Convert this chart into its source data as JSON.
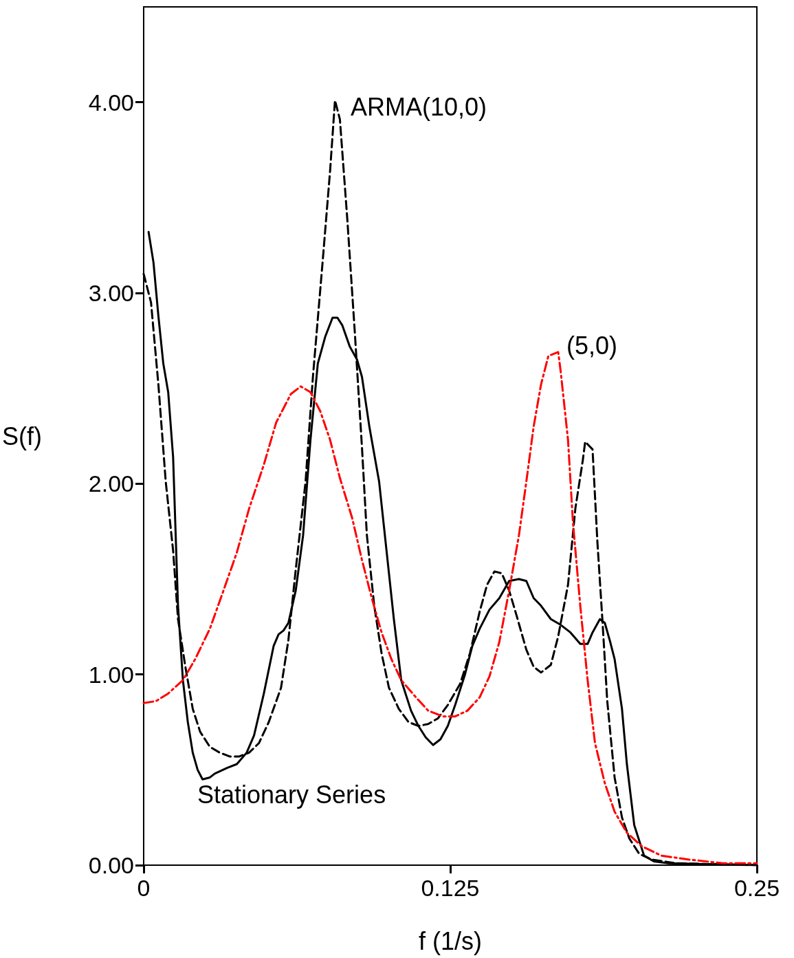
{
  "chart_data": {
    "type": "line",
    "xlabel": "f (1/s)",
    "ylabel": "S(f)",
    "xlim": [
      0,
      0.25
    ],
    "xticks": [
      0,
      0.125,
      0.25
    ],
    "ylim": [
      0,
      4.5
    ],
    "yticks": [
      {
        "value": 0,
        "label": "0.00"
      },
      {
        "value": 1,
        "label": "1.00"
      },
      {
        "value": 2,
        "label": "2.00"
      },
      {
        "value": 3,
        "label": "3.00"
      },
      {
        "value": 4,
        "label": "4.00"
      }
    ],
    "grid": false,
    "marker": "none",
    "annotations": [
      "ARMA(10,0)",
      "(5,0)",
      "Stationary Series"
    ],
    "series": [
      {
        "color": "#000000",
        "line_style": "solid",
        "x": [
          0.002,
          0.004,
          0.006,
          0.008,
          0.01,
          0.012,
          0.014,
          0.016,
          0.018,
          0.02,
          0.022,
          0.024,
          0.027,
          0.029,
          0.034,
          0.038,
          0.042,
          0.045,
          0.049,
          0.053,
          0.055,
          0.057,
          0.059,
          0.062,
          0.065,
          0.068,
          0.071,
          0.074,
          0.077,
          0.079,
          0.081,
          0.084,
          0.087,
          0.089,
          0.092,
          0.096,
          0.099,
          0.102,
          0.105,
          0.109,
          0.112,
          0.115,
          0.118,
          0.121,
          0.124,
          0.127,
          0.131,
          0.134,
          0.137,
          0.141,
          0.145,
          0.149,
          0.153,
          0.156,
          0.159,
          0.162,
          0.166,
          0.17,
          0.174,
          0.178,
          0.181,
          0.183,
          0.186,
          0.188,
          0.19,
          0.192,
          0.195,
          0.197,
          0.2,
          0.204,
          0.208,
          0.214,
          0.25
        ],
        "values": [
          3.32,
          3.16,
          2.88,
          2.63,
          2.48,
          2.14,
          1.36,
          0.97,
          0.75,
          0.59,
          0.5,
          0.45,
          0.46,
          0.48,
          0.51,
          0.53,
          0.59,
          0.68,
          0.9,
          1.15,
          1.21,
          1.23,
          1.27,
          1.44,
          1.73,
          2.23,
          2.63,
          2.77,
          2.87,
          2.87,
          2.83,
          2.72,
          2.65,
          2.56,
          2.3,
          2.01,
          1.65,
          1.29,
          0.97,
          0.81,
          0.73,
          0.67,
          0.63,
          0.66,
          0.73,
          0.84,
          1.0,
          1.15,
          1.24,
          1.34,
          1.4,
          1.49,
          1.5,
          1.49,
          1.4,
          1.36,
          1.29,
          1.26,
          1.22,
          1.16,
          1.16,
          1.22,
          1.29,
          1.27,
          1.18,
          1.08,
          0.82,
          0.53,
          0.21,
          0.05,
          0.02,
          0.01,
          0
        ]
      },
      {
        "color": "#000000",
        "line_style": "dashed",
        "x": [
          0,
          0.003,
          0.006,
          0.009,
          0.012,
          0.014,
          0.017,
          0.02,
          0.023,
          0.027,
          0.031,
          0.035,
          0.039,
          0.043,
          0.047,
          0.051,
          0.056,
          0.059,
          0.062,
          0.066,
          0.069,
          0.073,
          0.076,
          0.078,
          0.08,
          0.083,
          0.086,
          0.089,
          0.091,
          0.094,
          0.097,
          0.1,
          0.104,
          0.108,
          0.112,
          0.116,
          0.12,
          0.124,
          0.129,
          0.133,
          0.137,
          0.14,
          0.143,
          0.146,
          0.149,
          0.152,
          0.156,
          0.159,
          0.162,
          0.166,
          0.169,
          0.173,
          0.176,
          0.179,
          0.18,
          0.183,
          0.185,
          0.187,
          0.189,
          0.192,
          0.195,
          0.198,
          0.202,
          0.207,
          0.217,
          0.25
        ],
        "values": [
          3.1,
          2.95,
          2.52,
          2.01,
          1.65,
          1.29,
          1.04,
          0.82,
          0.7,
          0.62,
          0.59,
          0.57,
          0.57,
          0.59,
          0.64,
          0.75,
          0.93,
          1.18,
          1.55,
          2.01,
          2.56,
          3.17,
          3.64,
          4.01,
          3.91,
          3.39,
          2.81,
          2.19,
          1.73,
          1.36,
          1.11,
          0.93,
          0.82,
          0.75,
          0.73,
          0.74,
          0.77,
          0.84,
          0.95,
          1.11,
          1.33,
          1.47,
          1.54,
          1.53,
          1.44,
          1.31,
          1.13,
          1.04,
          1.01,
          1.05,
          1.2,
          1.47,
          1.87,
          2.12,
          2.22,
          2.18,
          1.69,
          1.29,
          0.86,
          0.46,
          0.25,
          0.14,
          0.06,
          0.03,
          0.01,
          0
        ]
      },
      {
        "color": "#ff0000",
        "line_style": "dashdot",
        "x": [
          0,
          0.005,
          0.01,
          0.016,
          0.021,
          0.027,
          0.032,
          0.038,
          0.043,
          0.049,
          0.054,
          0.06,
          0.064,
          0.068,
          0.072,
          0.076,
          0.08,
          0.085,
          0.089,
          0.093,
          0.097,
          0.101,
          0.105,
          0.111,
          0.116,
          0.122,
          0.127,
          0.132,
          0.137,
          0.141,
          0.145,
          0.149,
          0.153,
          0.156,
          0.159,
          0.162,
          0.165,
          0.169,
          0.17,
          0.173,
          0.175,
          0.178,
          0.181,
          0.184,
          0.188,
          0.192,
          0.197,
          0.203,
          0.211,
          0.222,
          0.236,
          0.25
        ],
        "values": [
          0.85,
          0.86,
          0.9,
          0.97,
          1.08,
          1.24,
          1.42,
          1.64,
          1.87,
          2.1,
          2.32,
          2.47,
          2.51,
          2.48,
          2.38,
          2.23,
          2.03,
          1.82,
          1.6,
          1.4,
          1.22,
          1.08,
          0.97,
          0.88,
          0.81,
          0.78,
          0.78,
          0.81,
          0.88,
          0.99,
          1.17,
          1.44,
          1.73,
          2.01,
          2.3,
          2.52,
          2.67,
          2.69,
          2.59,
          2.23,
          1.8,
          1.36,
          0.97,
          0.64,
          0.43,
          0.28,
          0.17,
          0.1,
          0.05,
          0.03,
          0.01,
          0.01
        ]
      }
    ]
  }
}
